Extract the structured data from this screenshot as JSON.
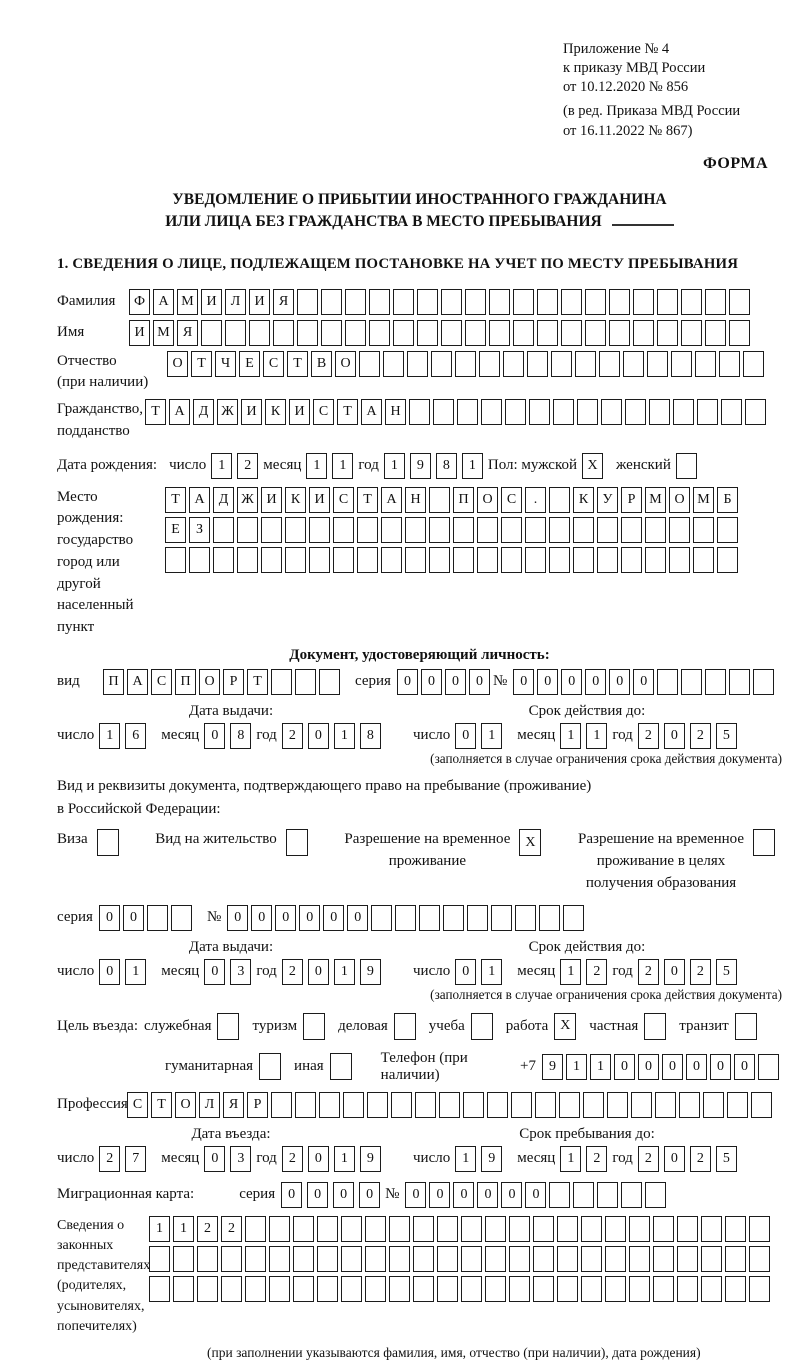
{
  "appendix": {
    "line1": "Приложение № 4",
    "line2": "к приказу МВД России",
    "line3": "от 10.12.2020 № 856",
    "line4": "(в ред. Приказа МВД России",
    "line5": "от 16.11.2022 № 867)",
    "form": "ФОРМА"
  },
  "title": {
    "line1": "УВЕДОМЛЕНИЕ О ПРИБЫТИИ ИНОСТРАННОГО ГРАЖДАНИНА",
    "line2": "ИЛИ ЛИЦА БЕЗ ГРАЖДАНСТВА В МЕСТО ПРЕБЫВАНИЯ"
  },
  "section1_heading": "1. СВЕДЕНИЯ О ЛИЦЕ, ПОДЛЕЖАЩЕМ ПОСТАНОВКЕ НА УЧЕТ ПО МЕСТУ ПРЕБЫВАНИЯ",
  "labels": {
    "day": "число",
    "month": "месяц",
    "year": "год",
    "series": "серия",
    "number": "№",
    "issue_date": "Дата выдачи:",
    "valid_until": "Срок действия до:",
    "entry_date": "Дата въезда:",
    "stay_until": "Срок пребывания до:",
    "restriction_note": "(заполняется в случае ограничения срока действия документа)"
  },
  "surname": {
    "label": "Фамилия",
    "cells": {
      "value": "ФАМИЛИЯ",
      "length": 26
    }
  },
  "given_name": {
    "label": "Имя",
    "cells": {
      "value": "ИМЯ",
      "length": 26
    }
  },
  "patronymic": {
    "label": "Отчество",
    "note": "(при наличии)",
    "cells": {
      "value": "ОТЧЕСТВО",
      "length": 25
    }
  },
  "citizenship": {
    "label1": "Гражданство,",
    "label2": "подданство",
    "cells": {
      "value": "ТАДЖИКИСТАН",
      "length": 26
    }
  },
  "birth_date": {
    "label": "Дата рождения:",
    "day": {
      "value": "12",
      "length": 2
    },
    "month": {
      "value": "11",
      "length": 2
    },
    "year": {
      "value": "1981",
      "length": 4
    }
  },
  "sex": {
    "label_male": "Пол: мужской",
    "male": {
      "value": "X",
      "length": 1
    },
    "label_female": "женский",
    "female": {
      "value": "",
      "length": 1
    }
  },
  "birth_place": {
    "label1": "Место рождения:",
    "label2": "государство",
    "label3": "город или другой",
    "label4": "населенный пункт",
    "row1": {
      "value": "ТАДЖИКИСТАН ПОС. КУРМОМБ",
      "length": 24
    },
    "row2": {
      "value": "ЕЗ",
      "length": 24
    },
    "row3": {
      "value": "",
      "length": 24
    }
  },
  "identity_doc": {
    "heading": "Документ, удостоверяющий личность:",
    "type_label": "вид",
    "type": {
      "value": "ПАСПОРТ",
      "length": 10
    },
    "series": {
      "value": "0000",
      "length": 4
    },
    "number": {
      "value": "000000",
      "length": 11
    },
    "issue": {
      "day": {
        "value": "16",
        "length": 2
      },
      "month": {
        "value": "08",
        "length": 2
      },
      "year": {
        "value": "2018",
        "length": 4
      }
    },
    "valid": {
      "day": {
        "value": "01",
        "length": 2
      },
      "month": {
        "value": "11",
        "length": 2
      },
      "year": {
        "value": "2025",
        "length": 4
      }
    }
  },
  "residence_doc": {
    "intro1": "Вид и реквизиты документа, подтверждающего право на пребывание (проживание)",
    "intro2": "в Российской Федерации:",
    "visa": {
      "label": "Виза",
      "box": {
        "value": "",
        "length": 1
      }
    },
    "residence_permit": {
      "label": "Вид на жительство",
      "box": {
        "value": "",
        "length": 1
      }
    },
    "temp_residence": {
      "label1": "Разрешение на временное",
      "label2": "проживание",
      "box": {
        "value": "X",
        "length": 1
      }
    },
    "temp_residence_edu": {
      "label1": "Разрешение на временное",
      "label2": "проживание в целях",
      "label3": "получения образования",
      "box": {
        "value": "",
        "length": 1
      }
    },
    "series": {
      "value": "00",
      "length": 4
    },
    "number": {
      "value": "000000",
      "length": 15
    },
    "issue": {
      "day": {
        "value": "01",
        "length": 2
      },
      "month": {
        "value": "03",
        "length": 2
      },
      "year": {
        "value": "2019",
        "length": 4
      }
    },
    "valid": {
      "day": {
        "value": "01",
        "length": 2
      },
      "month": {
        "value": "12",
        "length": 2
      },
      "year": {
        "value": "2025",
        "length": 4
      }
    }
  },
  "purpose": {
    "label": "Цель въезда:",
    "official": {
      "label": "служебная",
      "box": {
        "value": "",
        "length": 1
      }
    },
    "tourism": {
      "label": "туризм",
      "box": {
        "value": "",
        "length": 1
      }
    },
    "business": {
      "label": "деловая",
      "box": {
        "value": "",
        "length": 1
      }
    },
    "study": {
      "label": "учеба",
      "box": {
        "value": "",
        "length": 1
      }
    },
    "work": {
      "label": "работа",
      "box": {
        "value": "X",
        "length": 1
      }
    },
    "private": {
      "label": "частная",
      "box": {
        "value": "",
        "length": 1
      }
    },
    "transit": {
      "label": "транзит",
      "box": {
        "value": "",
        "length": 1
      }
    },
    "humanitarian": {
      "label": "гуманитарная",
      "box": {
        "value": "",
        "length": 1
      }
    },
    "other": {
      "label": "иная",
      "box": {
        "value": "",
        "length": 1
      }
    }
  },
  "phone": {
    "label": "Телефон (при наличии)",
    "prefix": "+7",
    "cells": {
      "value": "911000000",
      "length": 10
    }
  },
  "profession": {
    "label": "Профессия",
    "cells": {
      "value": "СТОЛЯР",
      "length": 27
    }
  },
  "entry": {
    "date": {
      "day": {
        "value": "27",
        "length": 2
      },
      "month": {
        "value": "03",
        "length": 2
      },
      "year": {
        "value": "2019",
        "length": 4
      }
    },
    "stay": {
      "day": {
        "value": "19",
        "length": 2
      },
      "month": {
        "value": "12",
        "length": 2
      },
      "year": {
        "value": "2025",
        "length": 4
      }
    }
  },
  "migration_card": {
    "label": "Миграционная карта:",
    "series": {
      "value": "0000",
      "length": 4
    },
    "number": {
      "value": "000000",
      "length": 11
    }
  },
  "guardians": {
    "label": "Сведения о законных представителях (родителях, усыновителях, попечителях)",
    "row1": {
      "value": "1122",
      "length": 26
    },
    "row2": {
      "value": "",
      "length": 26
    },
    "row3": {
      "value": "",
      "length": 26
    },
    "note": "(при заполнении указываются фамилия, имя, отчество (при наличии), дата рождения)"
  }
}
